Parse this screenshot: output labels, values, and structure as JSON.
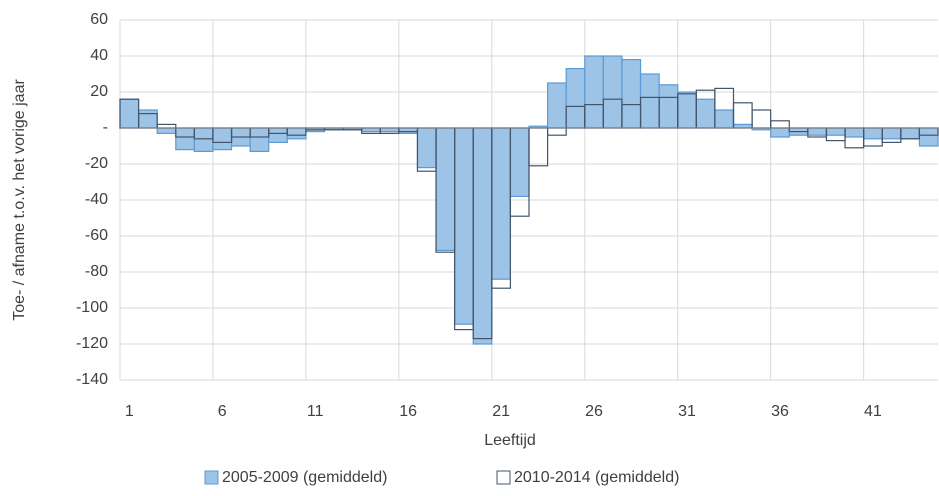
{
  "chart_data": {
    "type": "bar",
    "x_label": "Leeftijd",
    "y_label": "Toe- / afname t.o.v. het vorige jaar",
    "categories": [
      1,
      null,
      null,
      null,
      null,
      6,
      null,
      null,
      null,
      null,
      11,
      null,
      null,
      null,
      null,
      16,
      null,
      null,
      null,
      null,
      21,
      null,
      null,
      null,
      null,
      26,
      null,
      null,
      null,
      null,
      31,
      null,
      null,
      null,
      null,
      36,
      null,
      null,
      null,
      null,
      41,
      null,
      null,
      null
    ],
    "series": [
      {
        "name": "2005-2009 (gemiddeld)",
        "color": "#9dc3e6",
        "stroke": "#5b9bd5",
        "values": [
          16,
          10,
          -3,
          -12,
          -13,
          -12,
          -10,
          -13,
          -8,
          -6,
          -2,
          -1,
          -1,
          -2,
          -2,
          -3,
          -22,
          -68,
          -109,
          -120,
          -84,
          -38,
          1,
          25,
          33,
          40,
          40,
          38,
          30,
          24,
          20,
          16,
          10,
          2,
          -1,
          -5,
          -4,
          -4,
          -4,
          -5,
          -6,
          -6,
          -6,
          -10
        ]
      },
      {
        "name": "2010-2014 (gemiddeld)",
        "color": "none",
        "stroke": "#44546a",
        "values": [
          16,
          8,
          2,
          -5,
          -6,
          -8,
          -5,
          -5,
          -3,
          -4,
          -1,
          -1,
          -1,
          -3,
          -3,
          -2,
          -24,
          -69,
          -112,
          -117,
          -89,
          -49,
          -21,
          -4,
          12,
          13,
          16,
          13,
          17,
          17,
          19,
          21,
          22,
          14,
          10,
          4,
          -2,
          -5,
          -7,
          -11,
          -10,
          -8,
          -6,
          -4
        ]
      }
    ],
    "ylim": [
      -140,
      60
    ],
    "yticks": [
      -140,
      -120,
      -100,
      -80,
      -60,
      -40,
      -20,
      {
        "value": 0,
        "label": "-"
      },
      20,
      40,
      60
    ],
    "grid": true
  }
}
